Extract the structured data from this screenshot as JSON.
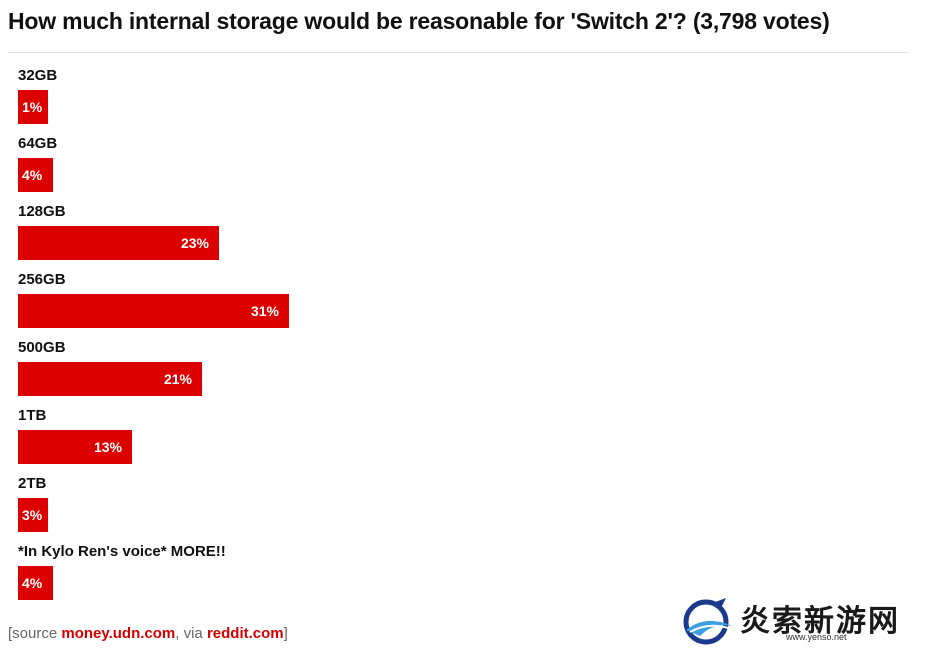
{
  "chart_data": {
    "type": "bar",
    "orientation": "horizontal",
    "title": "How much internal storage would be reasonable for 'Switch 2'? (3,798 votes)",
    "categories": [
      "32GB",
      "64GB",
      "128GB",
      "256GB",
      "500GB",
      "1TB",
      "2TB",
      "*In Kylo Ren's voice* MORE!!"
    ],
    "values": [
      1,
      4,
      23,
      31,
      21,
      13,
      3,
      4
    ],
    "value_labels": [
      "1%",
      "4%",
      "23%",
      "31%",
      "21%",
      "13%",
      "3%",
      "4%"
    ],
    "bar_color": "#dd0000",
    "grid": false,
    "legend": "none"
  },
  "source": {
    "prefix": "[source ",
    "link1": "money.udn.com",
    "middle": ", via ",
    "link2": "reddit.com",
    "suffix": "]"
  },
  "watermark": {
    "text": "炎索新游网",
    "url": "www.yenso.net"
  }
}
